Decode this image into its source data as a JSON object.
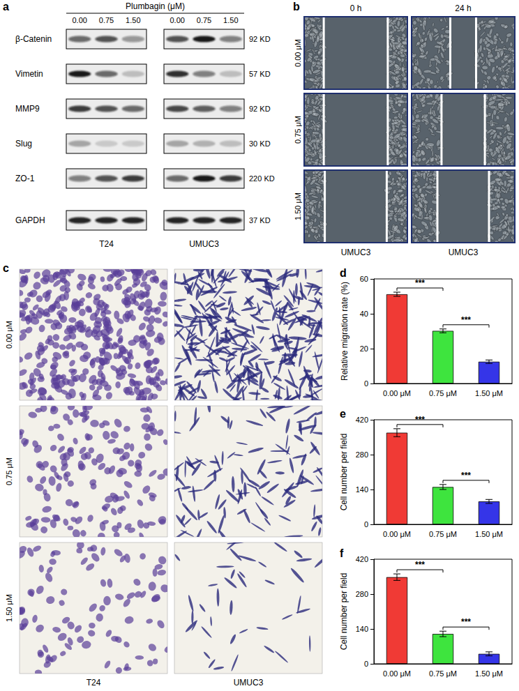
{
  "panels": {
    "a": {
      "label": "a",
      "title": "Plumbagin (μM)",
      "concentrations": [
        "0.00",
        "0.75",
        "1.50"
      ],
      "cell_lines": [
        "T24",
        "UMUC3"
      ],
      "proteins": [
        {
          "name": "β-Catenin",
          "size": "92 KD",
          "band_intensity": {
            "T24": [
              0.6,
              0.7,
              0.4
            ],
            "UMUC3": [
              0.7,
              0.95,
              0.5
            ]
          }
        },
        {
          "name": "Vimetin",
          "size": "57 KD",
          "band_intensity": {
            "T24": [
              0.95,
              0.6,
              0.2
            ],
            "UMUC3": [
              0.85,
              0.5,
              0.2
            ]
          }
        },
        {
          "name": "MMP9",
          "size": "92 KD",
          "band_intensity": {
            "T24": [
              0.8,
              0.7,
              0.6
            ],
            "UMUC3": [
              0.75,
              0.65,
              0.5
            ]
          }
        },
        {
          "name": "Slug",
          "size": "30 KD",
          "band_intensity": {
            "T24": [
              0.3,
              0.15,
              0.15
            ],
            "UMUC3": [
              0.3,
              0.25,
              0.2
            ]
          }
        },
        {
          "name": "ZO-1",
          "size": "220 KD",
          "band_intensity": {
            "T24": [
              0.5,
              0.7,
              0.8
            ],
            "UMUC3": [
              0.6,
              0.95,
              0.8
            ]
          }
        },
        {
          "name": "GAPDH",
          "size": "37 KD",
          "band_intensity": {
            "T24": [
              0.9,
              0.9,
              0.9
            ],
            "UMUC3": [
              0.9,
              0.9,
              0.9
            ]
          }
        }
      ]
    },
    "b": {
      "label": "b",
      "time_points": [
        "0 h",
        "24 h"
      ],
      "doses": [
        "0.00 μM",
        "0.75 μM",
        "1.50 μM"
      ],
      "cell_lines": [
        "UMUC3",
        "UMUC3"
      ],
      "wound_gap": [
        [
          0.62,
          0.25
        ],
        [
          0.62,
          0.42
        ],
        [
          0.6,
          0.5
        ]
      ]
    },
    "c": {
      "label": "c",
      "doses": [
        "0.00 μM",
        "0.75 μM",
        "1.50 μM"
      ],
      "cell_lines": [
        "T24",
        "UMUC3"
      ]
    }
  },
  "chart_data": [
    {
      "panel": "d",
      "type": "bar",
      "categories": [
        "0.00 μM",
        "0.75 μM",
        "1.50 μM"
      ],
      "values": [
        51.2,
        30.2,
        12.5
      ],
      "errors": [
        1.2,
        1.1,
        1.0
      ],
      "colors": [
        "#f03a35",
        "#3ee43e",
        "#3535e8"
      ],
      "ylabel": "Relative migration rate (%)",
      "ylim": [
        0,
        60
      ],
      "yticks": [
        0,
        20,
        40,
        60
      ],
      "grid": false,
      "annotations": [
        {
          "between": [
            "0.00 μM",
            "0.75 μM"
          ],
          "label": "***"
        },
        {
          "between": [
            "0.75 μM",
            "1.50 μM"
          ],
          "label": "***"
        }
      ]
    },
    {
      "panel": "e",
      "type": "bar",
      "categories": [
        "0.00 μM",
        "0.75 μM",
        "1.50 μM"
      ],
      "values": [
        368,
        150,
        92
      ],
      "errors": [
        16,
        10,
        8
      ],
      "colors": [
        "#f03a35",
        "#3ee43e",
        "#3535e8"
      ],
      "ylabel": "Cell number per field",
      "ylim": [
        0,
        420
      ],
      "yticks": [
        0,
        140,
        280,
        420
      ],
      "grid": false,
      "annotations": [
        {
          "between": [
            "0.00 μM",
            "0.75 μM"
          ],
          "label": "***"
        },
        {
          "between": [
            "0.75 μM",
            "1.50 μM"
          ],
          "label": "***"
        }
      ]
    },
    {
      "panel": "f",
      "type": "bar",
      "categories": [
        "0.00 μM",
        "0.75 μM",
        "1.50 μM"
      ],
      "values": [
        348,
        120,
        40
      ],
      "errors": [
        13,
        11,
        8
      ],
      "colors": [
        "#f03a35",
        "#3ee43e",
        "#3535e8"
      ],
      "ylabel": "Cell number per field",
      "ylim": [
        0,
        420
      ],
      "yticks": [
        0,
        140,
        280,
        420
      ],
      "grid": false,
      "annotations": [
        {
          "between": [
            "0.00 μM",
            "0.75 μM"
          ],
          "label": "***"
        },
        {
          "between": [
            "0.75 μM",
            "1.50 μM"
          ],
          "label": "***"
        }
      ]
    }
  ]
}
